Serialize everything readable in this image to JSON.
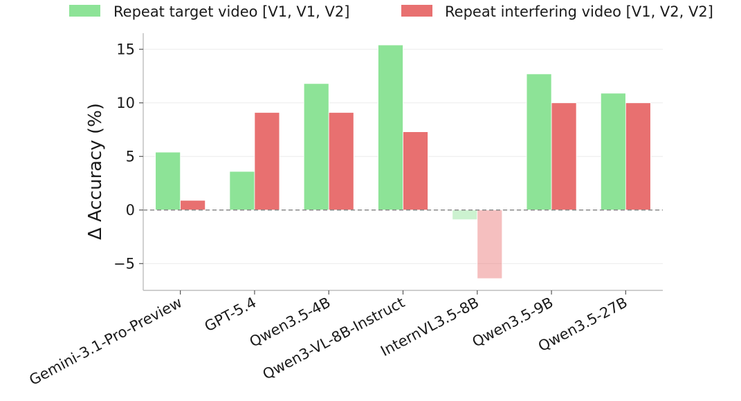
{
  "chart_data": {
    "type": "bar",
    "categories": [
      "Gemini-3.1-Pro-Preview",
      "GPT-5.4",
      "Qwen3.5-4B",
      "Qwen3-VL-8B-Instruct",
      "InternVL3.5-8B",
      "Qwen3.5-9B",
      "Qwen3.5-27B"
    ],
    "series": [
      {
        "name": "Repeat target video [V1, V1, V2]",
        "color": "#8de397",
        "values": [
          5.4,
          3.6,
          11.8,
          15.4,
          -0.9,
          12.7,
          10.9
        ]
      },
      {
        "name": "Repeat interfering video [V1, V2, V2]",
        "color": "#e87070",
        "values": [
          0.9,
          9.1,
          9.1,
          7.3,
          -6.4,
          10.0,
          10.0
        ]
      }
    ],
    "faded_categories": [
      "InternVL3.5-8B"
    ],
    "ylabel": "Δ Accuracy (%)",
    "xlabel": "",
    "ylim": [
      -7.5,
      16.5
    ],
    "yticks": [
      -5,
      0,
      5,
      10,
      15
    ],
    "ytick_labels": [
      "−5",
      "0",
      "5",
      "10",
      "15"
    ],
    "zero_line": "dashed",
    "grid": true,
    "legend_position": "top"
  }
}
